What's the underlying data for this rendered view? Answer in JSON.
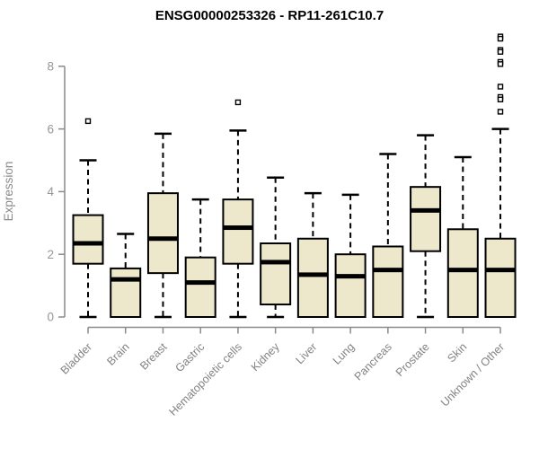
{
  "title": "ENSG00000253326 - RP11-261C10.7",
  "chart_data": {
    "type": "boxplot",
    "title": "ENSG00000253326 - RP11-261C10.7",
    "xlabel": "",
    "ylabel": "Expression",
    "yticks": [
      0,
      2,
      4,
      6,
      8
    ],
    "ylim": [
      0,
      9.2
    ],
    "grid": false,
    "legend": "none",
    "categories": [
      "Bladder",
      "Brain",
      "Breast",
      "Gastric",
      "Hematopoietic cells",
      "Kidney",
      "Liver",
      "Lung",
      "Pancreas",
      "Prostate",
      "Skin",
      "Unknown / Other"
    ],
    "boxes": [
      {
        "category": "Bladder",
        "low": 0,
        "q1": 1.7,
        "median": 2.35,
        "q3": 3.25,
        "high": 5.0,
        "outliers": [
          6.25
        ]
      },
      {
        "category": "Brain",
        "low": 0,
        "q1": 0,
        "median": 1.2,
        "q3": 1.55,
        "high": 2.65,
        "outliers": []
      },
      {
        "category": "Breast",
        "low": 0,
        "q1": 1.4,
        "median": 2.5,
        "q3": 3.95,
        "high": 5.85,
        "outliers": []
      },
      {
        "category": "Gastric",
        "low": 0,
        "q1": 0,
        "median": 1.1,
        "q3": 1.9,
        "high": 3.75,
        "outliers": []
      },
      {
        "category": "Hematopoietic cells",
        "low": 0,
        "q1": 1.7,
        "median": 2.85,
        "q3": 3.75,
        "high": 5.95,
        "outliers": [
          6.85
        ]
      },
      {
        "category": "Kidney",
        "low": 0,
        "q1": 0.4,
        "median": 1.75,
        "q3": 2.35,
        "high": 4.45,
        "outliers": []
      },
      {
        "category": "Liver",
        "low": 0,
        "q1": 0,
        "median": 1.35,
        "q3": 2.5,
        "high": 3.95,
        "outliers": []
      },
      {
        "category": "Lung",
        "low": 0,
        "q1": 0,
        "median": 1.3,
        "q3": 2.0,
        "high": 3.9,
        "outliers": []
      },
      {
        "category": "Pancreas",
        "low": 0,
        "q1": 0,
        "median": 1.5,
        "q3": 2.25,
        "high": 5.2,
        "outliers": []
      },
      {
        "category": "Prostate",
        "low": 0,
        "q1": 2.1,
        "median": 3.4,
        "q3": 4.15,
        "high": 5.8,
        "outliers": []
      },
      {
        "category": "Skin",
        "low": 0,
        "q1": 0,
        "median": 1.5,
        "q3": 2.8,
        "high": 5.1,
        "outliers": []
      },
      {
        "category": "Unknown / Other",
        "low": 0,
        "q1": 0,
        "median": 1.5,
        "q3": 2.5,
        "high": 6.0,
        "outliers": [
          8.95,
          8.88,
          8.52,
          8.46,
          8.14,
          8.07,
          7.35,
          7.02,
          6.94,
          6.55
        ]
      }
    ],
    "colors": {
      "box_fill": "#EDE8CB",
      "box_border": "#000000",
      "median": "#000000",
      "whisker": "#000000",
      "outlier_stroke": "#000000",
      "axis": "#8a8a8a",
      "tick_label": "#969696",
      "category_label": "#828282",
      "title": "#000000",
      "background": "#ffffff"
    }
  }
}
